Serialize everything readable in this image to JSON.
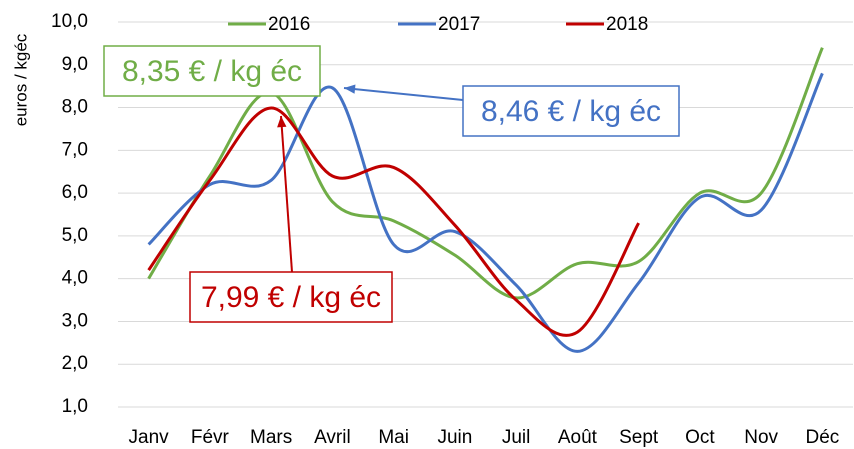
{
  "chart_data": {
    "type": "line",
    "y_label": "euros / kgéc",
    "categories": [
      "Janv",
      "Févr",
      "Mars",
      "Avril",
      "Mai",
      "Juin",
      "Juil",
      "Août",
      "Sept",
      "Oct",
      "Nov",
      "Déc"
    ],
    "series": [
      {
        "name": "2016",
        "color": "#70ad47",
        "values": [
          4.0,
          6.4,
          8.35,
          5.8,
          5.35,
          4.55,
          3.55,
          4.35,
          4.4,
          6.0,
          6.0,
          9.4
        ]
      },
      {
        "name": "2017",
        "color": "#4472c4",
        "values": [
          4.8,
          6.2,
          6.3,
          8.46,
          4.8,
          5.1,
          3.85,
          2.3,
          3.9,
          5.9,
          5.6,
          8.8
        ]
      },
      {
        "name": "2018",
        "color": "#c00000",
        "values": [
          4.2,
          6.3,
          7.99,
          6.4,
          6.6,
          5.25,
          3.5,
          2.75,
          5.3,
          null,
          null,
          null
        ]
      }
    ],
    "ylim": [
      1,
      10
    ],
    "yticks": [
      {
        "value": 1,
        "label": "1,0"
      },
      {
        "value": 2,
        "label": "2,0"
      },
      {
        "value": 3,
        "label": "3,0"
      },
      {
        "value": 4,
        "label": "4,0"
      },
      {
        "value": 5,
        "label": "5,0"
      },
      {
        "value": 6,
        "label": "6,0"
      },
      {
        "value": 7,
        "label": "7,0"
      },
      {
        "value": 8,
        "label": "8,0"
      },
      {
        "value": 9,
        "label": "9,0"
      },
      {
        "value": 10,
        "label": "10,0"
      }
    ],
    "grid": true,
    "legend": "top",
    "annotations": [
      {
        "text": "8,35 € / kg éc",
        "color": "#70ad47"
      },
      {
        "text": "8,46 € / kg éc",
        "color": "#4472c4"
      },
      {
        "text": "7,99 € / kg éc",
        "color": "#c00000"
      }
    ]
  }
}
